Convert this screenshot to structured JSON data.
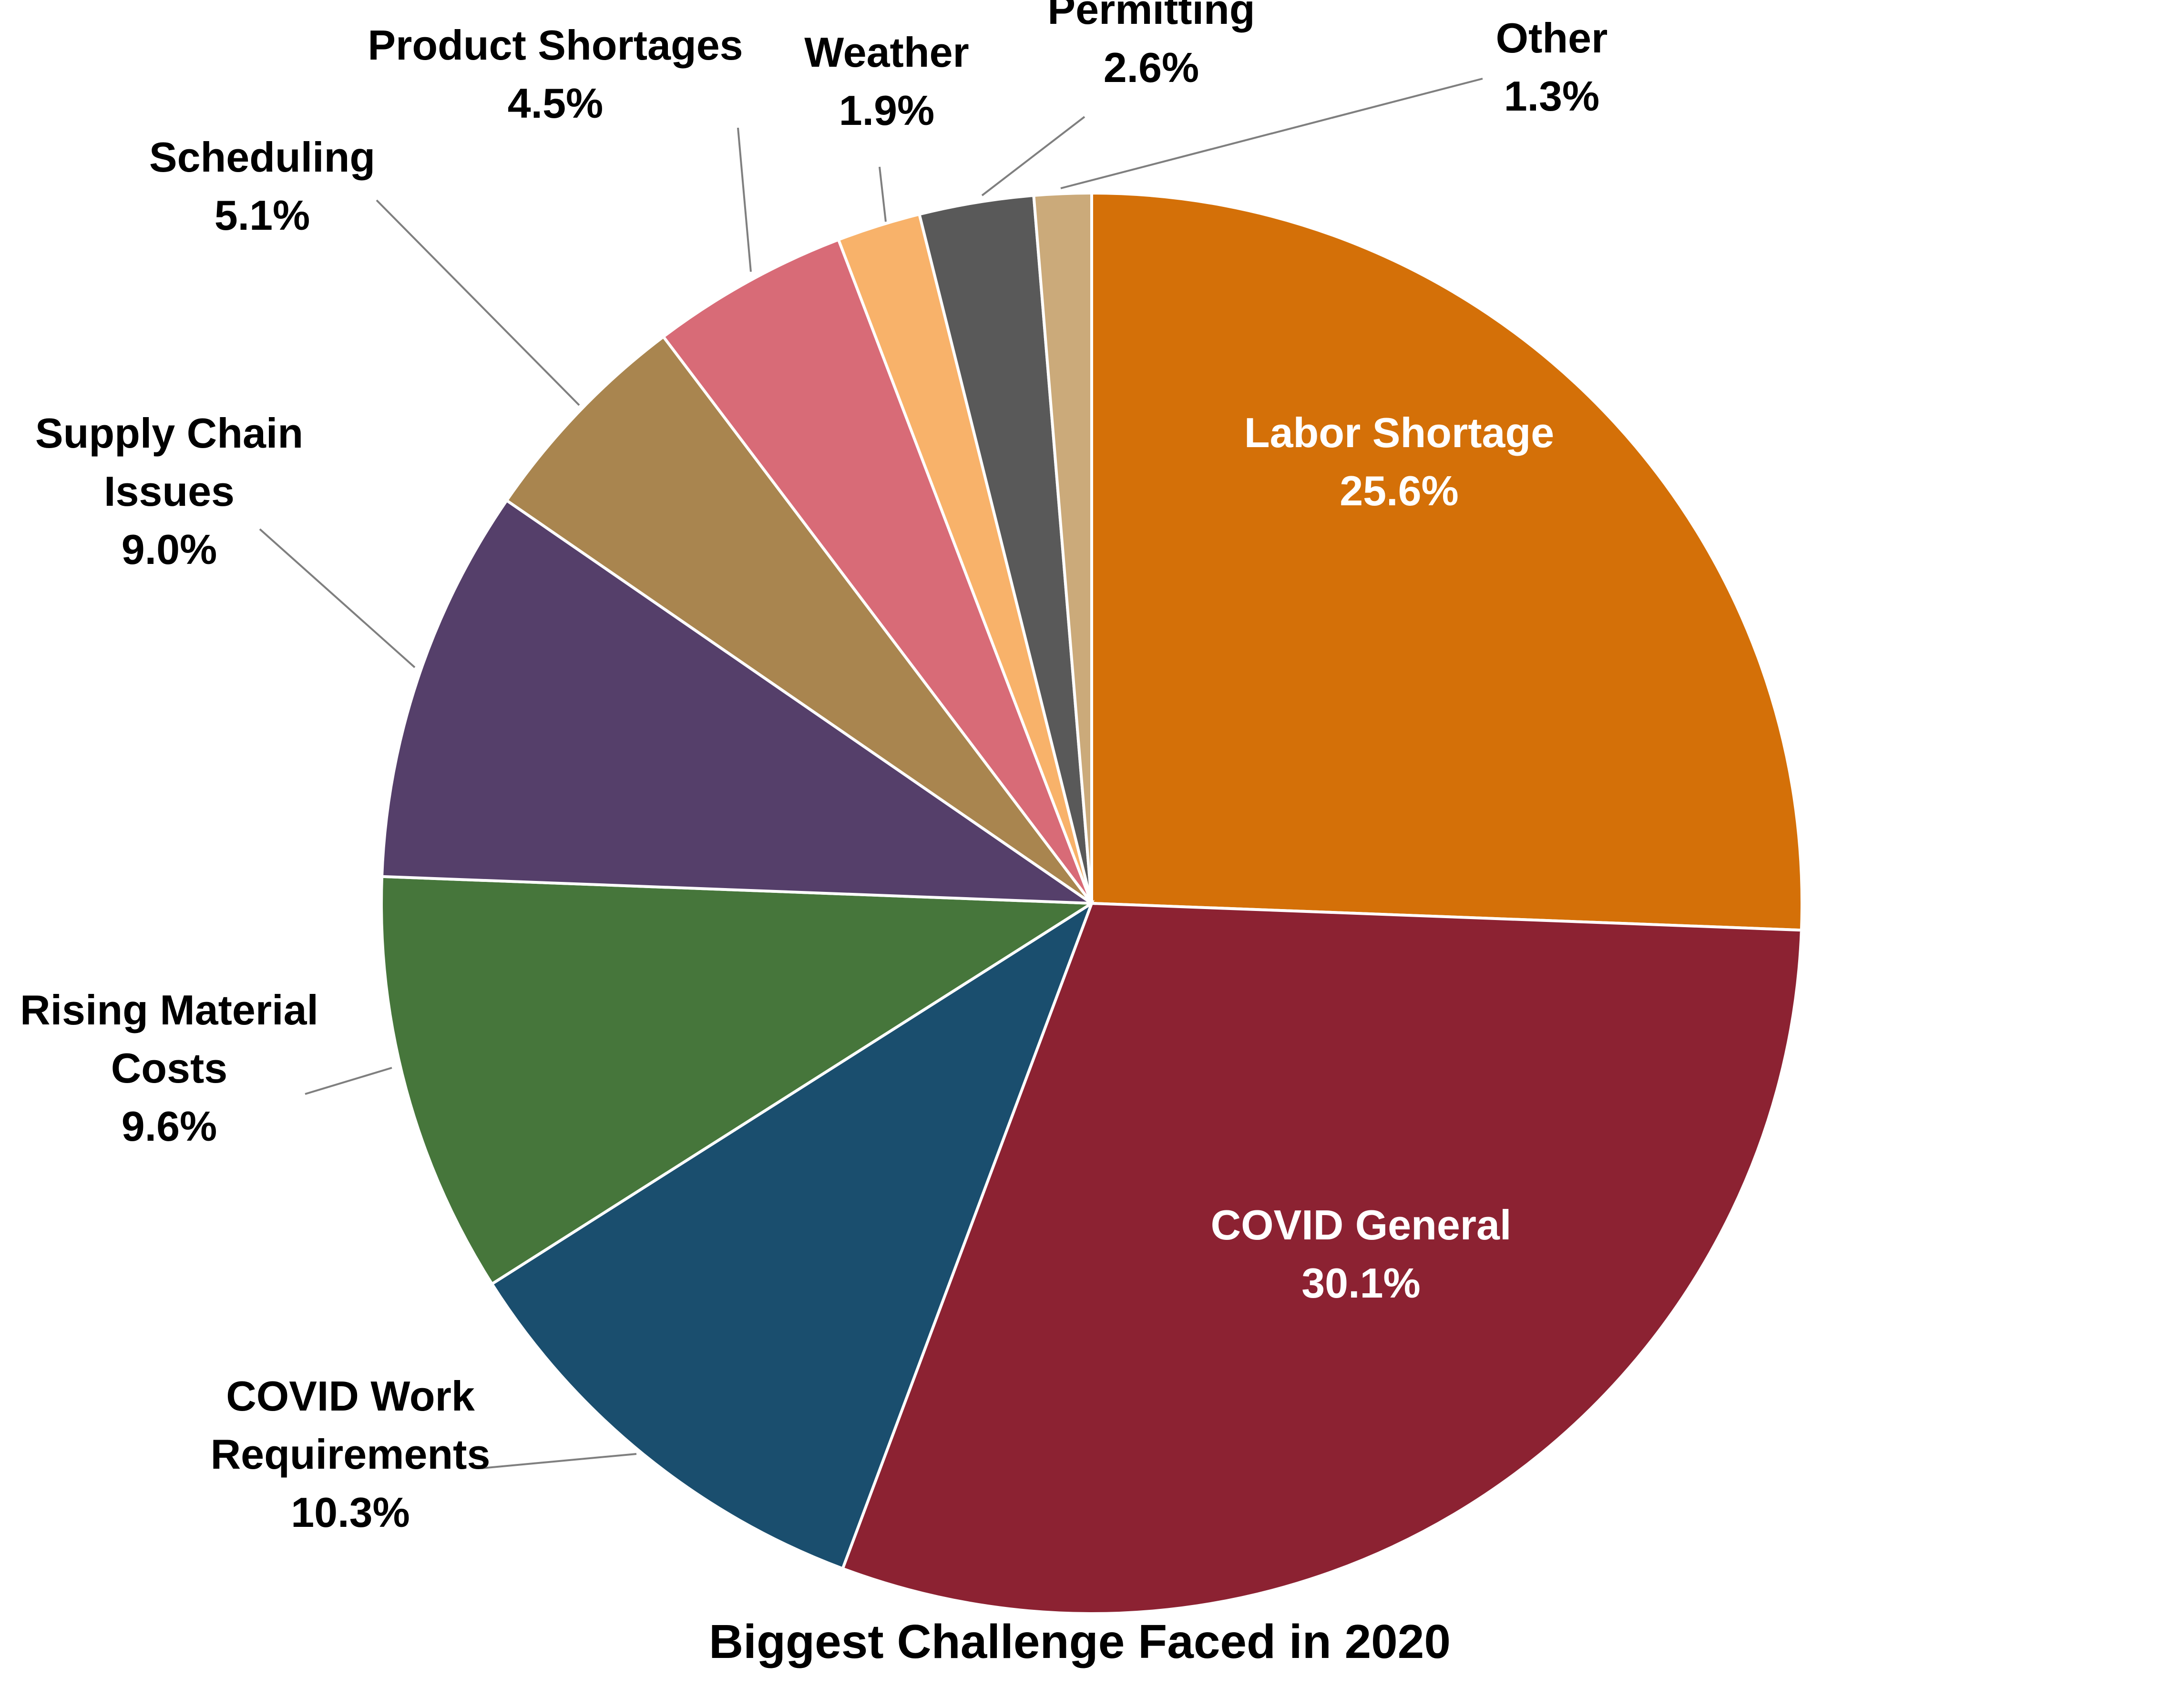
{
  "chart_data": {
    "type": "pie",
    "title": "Biggest Challenge Faced in 2020",
    "start": "12 o'clock",
    "direction": "clockwise",
    "slices": [
      {
        "lines": [
          "Labor Shortage"
        ],
        "value": 25.6,
        "value_label": "25.6%",
        "color": "#D47008",
        "text_color": "#ffffff",
        "label_position": "inside"
      },
      {
        "lines": [
          "COVID General"
        ],
        "value": 30.1,
        "value_label": "30.1%",
        "color": "#8C2232",
        "text_color": "#ffffff",
        "label_position": "inside"
      },
      {
        "lines": [
          "COVID Work",
          "Requirements"
        ],
        "value": 10.3,
        "value_label": "10.3%",
        "color": "#1A4E6E",
        "text_color": "#000000",
        "label_position": "outside"
      },
      {
        "lines": [
          "Rising Material",
          "Costs"
        ],
        "value": 9.6,
        "value_label": "9.6%",
        "color": "#46763B",
        "text_color": "#000000",
        "label_position": "outside"
      },
      {
        "lines": [
          "Supply Chain",
          "Issues"
        ],
        "value": 9.0,
        "value_label": "9.0%",
        "color": "#553F6A",
        "text_color": "#000000",
        "label_position": "outside"
      },
      {
        "lines": [
          "Scheduling"
        ],
        "value": 5.1,
        "value_label": "5.1%",
        "color": "#A9854F",
        "text_color": "#000000",
        "label_position": "outside"
      },
      {
        "lines": [
          "Product Shortages"
        ],
        "value": 4.5,
        "value_label": "4.5%",
        "color": "#D86B77",
        "text_color": "#000000",
        "label_position": "outside"
      },
      {
        "lines": [
          "Weather"
        ],
        "value": 1.9,
        "value_label": "1.9%",
        "color": "#F8B26A",
        "text_color": "#000000",
        "label_position": "outside"
      },
      {
        "lines": [
          "Permitting"
        ],
        "value": 2.6,
        "value_label": "2.6%",
        "color": "#595959",
        "text_color": "#000000",
        "label_position": "outside"
      },
      {
        "lines": [
          "Other"
        ],
        "value": 1.3,
        "value_label": "1.3%",
        "color": "#CBAA7A",
        "text_color": "#000000",
        "label_position": "outside"
      }
    ]
  }
}
